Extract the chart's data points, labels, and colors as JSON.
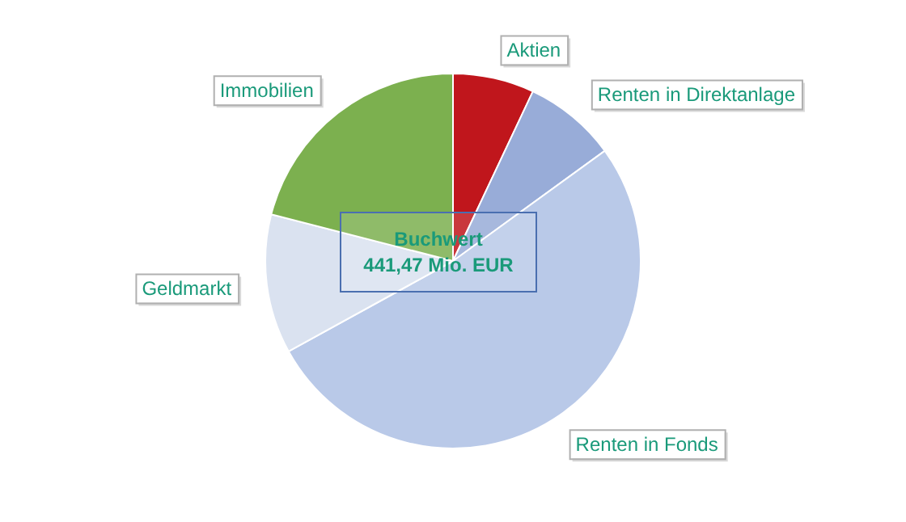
{
  "chart_data": {
    "type": "pie",
    "title": "Buchwert",
    "subtitle": "441,47 Mio. EUR",
    "categories": [
      "Aktien",
      "Renten in Direktanlage",
      "Renten in Fonds",
      "Geldmarkt",
      "Immobilien"
    ],
    "values": [
      7,
      8,
      52,
      12,
      21
    ],
    "colors": [
      "#c0161c",
      "#98acd8",
      "#b9c9e8",
      "#dae2f0",
      "#7cb04f"
    ],
    "legend": false
  }
}
